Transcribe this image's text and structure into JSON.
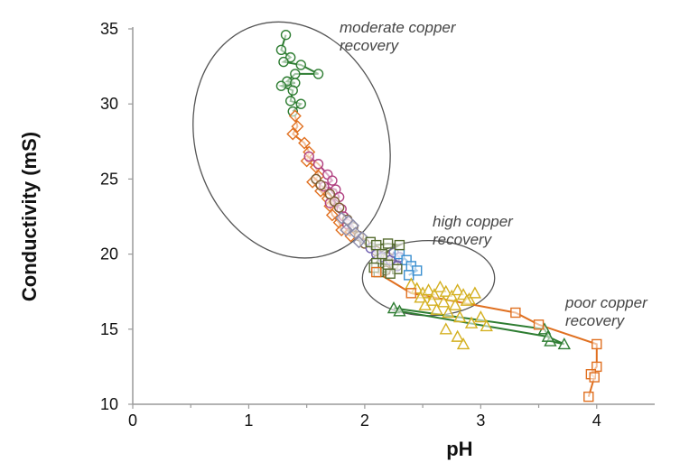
{
  "chart_data": {
    "type": "scatter",
    "title": "",
    "xlabel": "pH",
    "ylabel": "Conductivity (mS)",
    "xlim": [
      0,
      4.5
    ],
    "ylim": [
      10,
      35
    ],
    "x_ticks": [
      "0",
      "1",
      "2",
      "3",
      "4"
    ],
    "y_ticks": [
      "10",
      "15",
      "20",
      "25",
      "30",
      "35"
    ],
    "grid": false,
    "legend": "none",
    "series": [
      {
        "color": "#2e7d32",
        "marker": "circle",
        "connected": true,
        "points": [
          [
            1.32,
            34.6
          ],
          [
            1.28,
            33.6
          ],
          [
            1.36,
            33.1
          ],
          [
            1.3,
            32.8
          ],
          [
            1.45,
            32.6
          ],
          [
            1.6,
            32.0
          ],
          [
            1.4,
            32.0
          ],
          [
            1.33,
            31.5
          ],
          [
            1.4,
            31.4
          ],
          [
            1.28,
            31.2
          ],
          [
            1.38,
            30.9
          ],
          [
            1.36,
            30.2
          ],
          [
            1.45,
            30.0
          ],
          [
            1.38,
            29.5
          ]
        ]
      },
      {
        "color": "#e07020",
        "marker": "diamond",
        "connected": true,
        "points": [
          [
            1.4,
            29.2
          ],
          [
            1.42,
            28.5
          ],
          [
            1.38,
            28.0
          ],
          [
            1.48,
            27.4
          ],
          [
            1.52,
            26.8
          ],
          [
            1.5,
            26.2
          ],
          [
            1.58,
            25.8
          ],
          [
            1.6,
            25.2
          ],
          [
            1.55,
            24.8
          ],
          [
            1.62,
            24.2
          ],
          [
            1.68,
            23.7
          ],
          [
            1.7,
            23.2
          ],
          [
            1.72,
            22.6
          ],
          [
            1.78,
            22.1
          ],
          [
            1.8,
            21.6
          ],
          [
            1.88,
            21.2
          ]
        ]
      },
      {
        "color": "#b04080",
        "marker": "circle",
        "connected": true,
        "points": [
          [
            1.52,
            26.5
          ],
          [
            1.6,
            26.0
          ],
          [
            1.68,
            25.3
          ],
          [
            1.72,
            24.9
          ],
          [
            1.65,
            24.5
          ],
          [
            1.75,
            24.3
          ],
          [
            1.78,
            23.8
          ],
          [
            1.7,
            23.4
          ],
          [
            1.8,
            23.0
          ],
          [
            1.82,
            22.5
          ],
          [
            1.85,
            22.0
          ]
        ]
      },
      {
        "color": "#7a5a30",
        "marker": "circle",
        "connected": true,
        "points": [
          [
            1.58,
            25.0
          ],
          [
            1.62,
            24.6
          ],
          [
            1.7,
            24.0
          ],
          [
            1.74,
            23.5
          ],
          [
            1.78,
            23.1
          ],
          [
            1.85,
            22.3
          ],
          [
            1.9,
            21.8
          ],
          [
            1.95,
            21.2
          ],
          [
            2.0,
            20.7
          ],
          [
            2.1,
            20.2
          ],
          [
            2.2,
            19.8
          ],
          [
            2.25,
            19.3
          ],
          [
            2.18,
            18.9
          ]
        ]
      },
      {
        "color": "#8a8aa8",
        "marker": "diamond",
        "connected": true,
        "points": [
          [
            1.8,
            22.4
          ],
          [
            1.86,
            22.2
          ],
          [
            1.9,
            21.9
          ],
          [
            1.84,
            21.6
          ],
          [
            1.92,
            21.4
          ],
          [
            1.98,
            21.1
          ],
          [
            1.95,
            20.8
          ]
        ]
      },
      {
        "color": "#7060b0",
        "marker": "circle",
        "connected": true,
        "points": [
          [
            2.05,
            20.4
          ],
          [
            2.1,
            20.0
          ],
          [
            2.15,
            19.8
          ],
          [
            2.22,
            19.6
          ],
          [
            2.25,
            20.1
          ],
          [
            2.3,
            19.8
          ],
          [
            2.28,
            19.2
          ]
        ]
      },
      {
        "color": "#3a8fd0",
        "marker": "square",
        "connected": true,
        "points": [
          [
            2.3,
            20.0
          ],
          [
            2.36,
            19.6
          ],
          [
            2.4,
            19.2
          ],
          [
            2.45,
            18.9
          ],
          [
            2.38,
            18.6
          ]
        ]
      },
      {
        "color": "#556b2f",
        "marker": "square",
        "connected": true,
        "points": [
          [
            2.05,
            20.8
          ],
          [
            2.1,
            20.6
          ],
          [
            2.2,
            20.7
          ],
          [
            2.3,
            20.6
          ],
          [
            2.15,
            20.0
          ],
          [
            2.1,
            19.4
          ],
          [
            2.2,
            19.3
          ],
          [
            2.28,
            19.0
          ],
          [
            2.12,
            18.8
          ],
          [
            2.22,
            18.7
          ],
          [
            2.08,
            19.1
          ]
        ]
      },
      {
        "color": "#d4b020",
        "marker": "triangle",
        "connected": false,
        "points": [
          [
            2.4,
            18.0
          ],
          [
            2.45,
            17.7
          ],
          [
            2.5,
            17.4
          ],
          [
            2.55,
            17.6
          ],
          [
            2.6,
            17.3
          ],
          [
            2.65,
            17.8
          ],
          [
            2.7,
            17.5
          ],
          [
            2.75,
            17.2
          ],
          [
            2.8,
            17.6
          ],
          [
            2.85,
            17.3
          ],
          [
            2.9,
            17.0
          ],
          [
            2.48,
            17.1
          ],
          [
            2.58,
            16.9
          ],
          [
            2.68,
            16.8
          ],
          [
            2.78,
            16.6
          ],
          [
            2.88,
            16.9
          ],
          [
            2.95,
            17.4
          ],
          [
            2.52,
            16.6
          ],
          [
            2.62,
            16.3
          ],
          [
            2.72,
            16.1
          ],
          [
            2.82,
            15.8
          ],
          [
            2.92,
            15.4
          ],
          [
            2.7,
            15.0
          ],
          [
            2.8,
            14.5
          ],
          [
            2.85,
            14.0
          ],
          [
            3.05,
            15.2
          ],
          [
            3.0,
            15.8
          ]
        ]
      },
      {
        "color": "#2e7d32",
        "marker": "triangle",
        "connected": true,
        "points": [
          [
            2.25,
            16.4
          ],
          [
            3.55,
            15.0
          ],
          [
            3.6,
            14.2
          ],
          [
            3.72,
            14.0
          ],
          [
            3.58,
            14.5
          ],
          [
            2.3,
            16.2
          ]
        ]
      },
      {
        "color": "#e07020",
        "marker": "square",
        "connected": true,
        "points": [
          [
            2.1,
            18.8
          ],
          [
            2.4,
            17.4
          ],
          [
            3.3,
            16.1
          ],
          [
            3.5,
            15.3
          ],
          [
            4.0,
            14.0
          ],
          [
            4.0,
            12.5
          ],
          [
            3.95,
            12.0
          ],
          [
            3.98,
            11.8
          ],
          [
            3.93,
            10.5
          ]
        ]
      }
    ],
    "annotations": [
      {
        "lines": [
          "moderate copper",
          "recovery"
        ],
        "x": 1.8,
        "y": 34.5
      },
      {
        "lines": [
          "high copper",
          "recovery"
        ],
        "x": 2.55,
        "y": 21.2
      },
      {
        "lines": [
          "poor copper",
          "recovery"
        ],
        "x": 3.85,
        "y": 15.6
      }
    ],
    "ellipses": [
      {
        "label": "moderate",
        "cx": 1.37,
        "cy": 27.6,
        "rx": 1.38,
        "ry": 8.0,
        "rotate_deg": -18
      },
      {
        "label": "high",
        "cx": 2.55,
        "cy": 18.4,
        "rx": 0.95,
        "ry": 2.5,
        "rotate_deg": 0
      },
      {
        "label": "none",
        "cx": 0,
        "cy": 0,
        "rx": 0,
        "ry": 0,
        "rotate_deg": 0
      }
    ]
  }
}
